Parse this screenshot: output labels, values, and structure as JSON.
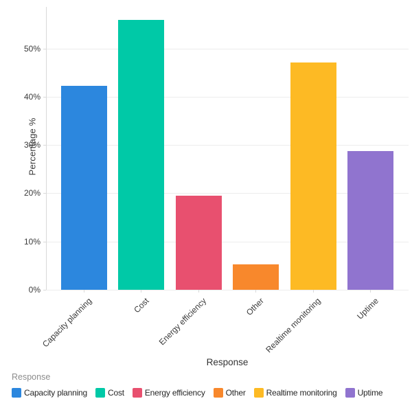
{
  "chart_data": {
    "type": "bar",
    "title": "",
    "xlabel": "Response",
    "ylabel": "Percentage %",
    "categories": [
      "Capacity planning",
      "Cost",
      "Energy efficiency",
      "Other",
      "Realtime monitoring",
      "Uptime"
    ],
    "values": [
      42.3,
      55.9,
      19.5,
      5.2,
      47.1,
      28.8
    ],
    "colors": [
      "#2c87de",
      "#00c9a7",
      "#e8506f",
      "#f8882c",
      "#fdba24",
      "#9074cf"
    ],
    "ylim": [
      0,
      58.6
    ],
    "yticks": [
      {
        "value": 0,
        "label": "0%"
      },
      {
        "value": 10,
        "label": "10%"
      },
      {
        "value": 20,
        "label": "20%"
      },
      {
        "value": 30,
        "label": "30%"
      },
      {
        "value": 40,
        "label": "40%"
      },
      {
        "value": 50,
        "label": "50%"
      }
    ],
    "grid": true,
    "legend": {
      "position": "bottom",
      "title": "Response",
      "items": [
        {
          "label": "Capacity planning",
          "color": "#2c87de"
        },
        {
          "label": "Cost",
          "color": "#00c9a7"
        },
        {
          "label": "Energy efficiency",
          "color": "#e8506f"
        },
        {
          "label": "Other",
          "color": "#f8882c"
        },
        {
          "label": "Realtime monitoring",
          "color": "#fdba24"
        },
        {
          "label": "Uptime",
          "color": "#9074cf"
        }
      ]
    }
  }
}
